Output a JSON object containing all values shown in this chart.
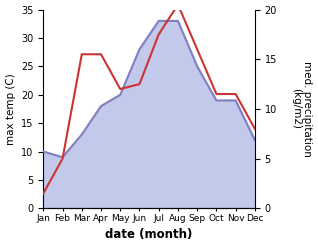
{
  "months": [
    "Jan",
    "Feb",
    "Mar",
    "Apr",
    "May",
    "Jun",
    "Jul",
    "Aug",
    "Sep",
    "Oct",
    "Nov",
    "Dec"
  ],
  "month_indices": [
    0,
    1,
    2,
    3,
    4,
    5,
    6,
    7,
    8,
    9,
    10,
    11
  ],
  "temperature": [
    10,
    9,
    13,
    18,
    20,
    28,
    33,
    33,
    25,
    19,
    19,
    12
  ],
  "precipitation": [
    1.5,
    5.0,
    15.5,
    15.5,
    12.0,
    12.5,
    17.5,
    20.5,
    16.0,
    11.5,
    11.5,
    8.0
  ],
  "temp_ylim": [
    0,
    35
  ],
  "precip_ylim": [
    0,
    20
  ],
  "temp_color": "#8080c0",
  "temp_fill_color": "#b8c0e8",
  "precip_color": "#cc3333",
  "ylabel_left": "max temp (C)",
  "ylabel_right": "med. precipitation\n(kg/m2)",
  "xlabel": "date (month)",
  "temp_yticks": [
    0,
    5,
    10,
    15,
    20,
    25,
    30,
    35
  ],
  "precip_yticks": [
    0,
    5,
    10,
    15,
    20
  ],
  "background_color": "#ffffff",
  "fig_width": 3.18,
  "fig_height": 2.47,
  "dpi": 100
}
